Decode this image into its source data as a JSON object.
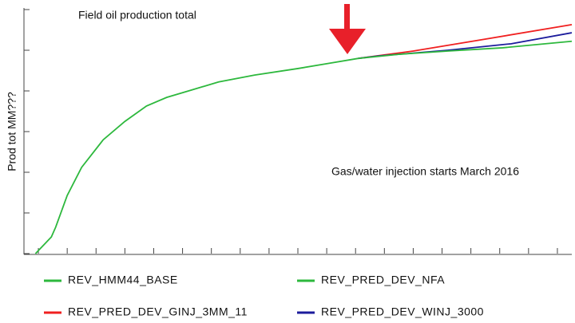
{
  "chart_data": {
    "type": "line",
    "title": "Field oil production total",
    "y_label": "Prod tot MM???",
    "annotation": "Gas/water injection starts March 2016",
    "xlim": [
      -0.5,
      18.5
    ],
    "xticks": [
      0,
      1,
      2,
      3,
      4,
      5,
      6,
      7,
      8,
      9,
      10,
      11,
      12,
      13,
      14,
      15,
      16,
      17,
      18
    ],
    "ylim": [
      0,
      6
    ],
    "yticks": [
      0,
      1,
      2,
      3,
      4,
      5,
      6
    ],
    "series": [
      {
        "name": "REV_HMM44_BASE",
        "color": "#2db83d",
        "x": [
          -0.1,
          0.45,
          0.6,
          1.0,
          1.5,
          2.25,
          3.0,
          3.75,
          4.45,
          5.3,
          6.25,
          7.5,
          9.0,
          10.0,
          11.1
        ],
        "values": [
          0,
          0.41,
          0.65,
          1.43,
          2.12,
          2.8,
          3.25,
          3.63,
          3.84,
          4.02,
          4.22,
          4.39,
          4.55,
          4.67,
          4.8
        ]
      },
      {
        "name": "REV_PRED_DEV_NFA",
        "color": "#2db83d",
        "x": [
          11.1,
          12.5,
          14.2,
          16.1,
          18.5
        ],
        "values": [
          4.8,
          4.9,
          4.98,
          5.06,
          5.22
        ]
      },
      {
        "name": "REV_PRED_DEV_GINJ_3MM_11",
        "color": "#f02020",
        "x": [
          11.1,
          13.0,
          15.3,
          18.5
        ],
        "values": [
          4.8,
          4.98,
          5.25,
          5.63
        ]
      },
      {
        "name": "REV_PRED_DEV_WINJ_3000",
        "color": "#1c1c9c",
        "x": [
          11.1,
          11.8,
          14.2,
          16.4,
          18.5
        ],
        "values": [
          4.8,
          4.86,
          5.0,
          5.16,
          5.43
        ]
      }
    ]
  }
}
